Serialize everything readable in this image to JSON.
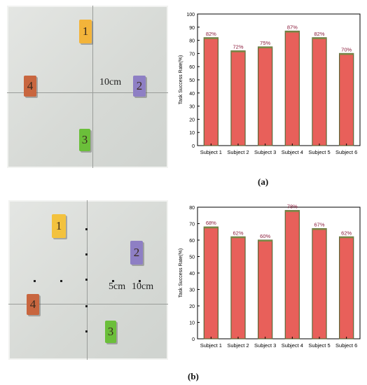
{
  "panels": [
    {
      "caption": "(a)",
      "photo": {
        "blocks": [
          {
            "label": "1",
            "color": "#f3b43a"
          },
          {
            "label": "2",
            "color": "#8e7fc4"
          },
          {
            "label": "3",
            "color": "#6bbf3a"
          },
          {
            "label": "4",
            "color": "#c8663f"
          }
        ],
        "distance_label": "10cm"
      }
    },
    {
      "caption": "(b)",
      "photo": {
        "blocks": [
          {
            "label": "1",
            "color": "#f3c23e"
          },
          {
            "label": "2",
            "color": "#8e7fc4"
          },
          {
            "label": "3",
            "color": "#6bbf3a"
          },
          {
            "label": "4",
            "color": "#c8663f"
          }
        ],
        "distance_label_near": "5cm",
        "distance_label_far": "10cm"
      }
    }
  ],
  "chart_data": [
    {
      "type": "bar",
      "categories": [
        "Subject 1",
        "Subject 2",
        "Subject 3",
        "Subject 4",
        "Subject 5",
        "Subject 6"
      ],
      "values": [
        82,
        72,
        75,
        87,
        82,
        70
      ],
      "data_labels": [
        "82%",
        "72%",
        "75%",
        "87%",
        "82%",
        "70%"
      ],
      "ylabel": "Task Success Rate(%)",
      "ylim": [
        0,
        100
      ],
      "yticks": [
        0,
        10,
        20,
        30,
        40,
        50,
        60,
        70,
        80,
        90,
        100
      ],
      "bar_color": "#e8605a",
      "label_color": "#8a1a3a"
    },
    {
      "type": "bar",
      "categories": [
        "Subject 1",
        "Subject 2",
        "Subject 3",
        "Subject 4",
        "Subject 5",
        "Subject 6"
      ],
      "values": [
        68,
        62,
        60,
        78,
        67,
        62
      ],
      "data_labels": [
        "68%",
        "62%",
        "60%",
        "78%",
        "67%",
        "62%"
      ],
      "ylabel": "Task Success Rate(%)",
      "ylim": [
        0,
        80
      ],
      "yticks": [
        0,
        10,
        20,
        30,
        40,
        50,
        60,
        70,
        80
      ],
      "bar_color": "#e8605a",
      "label_color": "#8a1a3a"
    }
  ]
}
